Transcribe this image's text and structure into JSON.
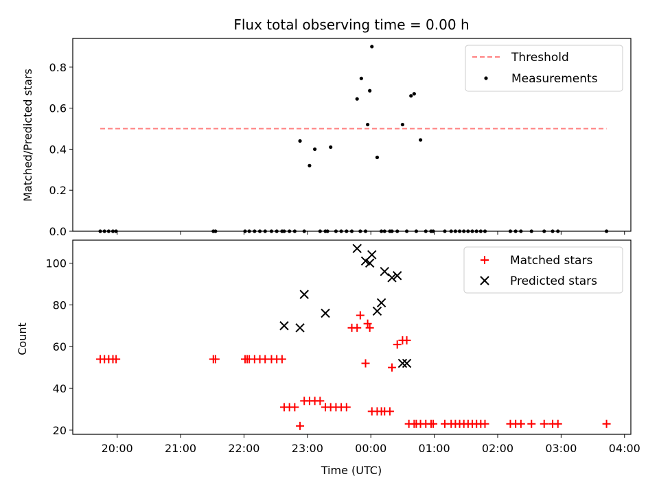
{
  "chart_data": [
    {
      "type": "scatter",
      "title": "Flux total observing time = 0.00 h",
      "xlabel": "",
      "ylabel": "Matched/Predicted stars",
      "xlim": [
        "19:18",
        "04:06"
      ],
      "ylim": [
        0,
        0.94
      ],
      "yticks": [
        0.0,
        0.2,
        0.4,
        0.6,
        0.8
      ],
      "yticklabels": [
        "0.0",
        "0.2",
        "0.4",
        "0.6",
        "0.8"
      ],
      "grid": false,
      "legend": "top-right",
      "series": [
        {
          "name": "Threshold",
          "kind": "line",
          "style": "dashed",
          "color": "#ff8080",
          "x": [
            "19:44",
            "03:43"
          ],
          "y": [
            0.5,
            0.5
          ]
        },
        {
          "name": "Measurements",
          "kind": "scatter",
          "marker": "dot",
          "color": "#000000",
          "x": [
            "19:44",
            "19:48",
            "19:52",
            "19:56",
            "19:59",
            "21:31",
            "21:33",
            "22:01",
            "22:05",
            "22:10",
            "22:15",
            "22:20",
            "22:26",
            "22:31",
            "22:36",
            "22:38",
            "22:43",
            "22:48",
            "22:53",
            "22:57",
            "23:02",
            "23:07",
            "23:12",
            "23:17",
            "23:19",
            "23:22",
            "23:27",
            "23:32",
            "23:37",
            "23:42",
            "23:47",
            "23:50",
            "23:51",
            "23:55",
            "23:57",
            "23:59",
            "00:01",
            "00:06",
            "00:10",
            "00:13",
            "00:18",
            "00:20",
            "00:25",
            "00:30",
            "00:34",
            "00:38",
            "00:41",
            "00:43",
            "00:47",
            "00:52",
            "00:57",
            "00:59",
            "01:10",
            "01:16",
            "01:20",
            "01:24",
            "01:28",
            "01:32",
            "01:36",
            "01:40",
            "01:44",
            "01:48",
            "02:12",
            "02:17",
            "02:22",
            "02:32",
            "02:44",
            "02:52",
            "02:57",
            "03:43"
          ],
          "y": [
            0,
            0,
            0,
            0,
            0,
            0,
            0,
            0,
            0,
            0,
            0,
            0,
            0,
            0,
            0,
            0,
            0,
            0,
            0.44,
            0,
            0.32,
            0.4,
            0,
            0,
            0,
            0.41,
            0,
            0,
            0,
            0,
            0.645,
            0,
            0.745,
            0,
            0.52,
            0.685,
            0.9,
            0.36,
            0,
            0,
            0,
            0,
            0,
            0.52,
            0,
            0.66,
            0.67,
            0,
            0.445,
            0,
            0,
            0,
            0,
            0,
            0,
            0,
            0,
            0,
            0,
            0,
            0,
            0,
            0,
            0,
            0,
            0,
            0,
            0,
            0,
            0
          ]
        }
      ]
    },
    {
      "type": "scatter",
      "title": "",
      "xlabel": "Time (UTC)",
      "ylabel": "Count",
      "xlim": [
        "19:18",
        "04:06"
      ],
      "xticks": [
        "20:00",
        "21:00",
        "22:00",
        "23:00",
        "00:00",
        "01:00",
        "02:00",
        "03:00",
        "04:00"
      ],
      "ylim": [
        18,
        111
      ],
      "yticks": [
        20,
        40,
        60,
        80,
        100
      ],
      "grid": false,
      "legend": "top-right",
      "series": [
        {
          "name": "Matched stars",
          "kind": "scatter",
          "marker": "plus",
          "color": "#ff0000",
          "x": [
            "19:44",
            "19:48",
            "19:52",
            "19:56",
            "19:59",
            "21:31",
            "21:33",
            "22:01",
            "22:03",
            "22:05",
            "22:10",
            "22:15",
            "22:20",
            "22:26",
            "22:31",
            "22:36",
            "22:38",
            "22:43",
            "22:48",
            "22:53",
            "22:57",
            "23:02",
            "23:07",
            "23:12",
            "23:17",
            "23:22",
            "23:27",
            "23:32",
            "23:37",
            "23:42",
            "23:47",
            "23:50",
            "23:55",
            "23:57",
            "23:59",
            "00:01",
            "00:06",
            "00:10",
            "00:13",
            "00:18",
            "00:20",
            "00:25",
            "00:30",
            "00:34",
            "00:36",
            "00:41",
            "00:43",
            "00:47",
            "00:52",
            "00:57",
            "00:59",
            "01:10",
            "01:16",
            "01:20",
            "01:24",
            "01:28",
            "01:32",
            "01:36",
            "01:40",
            "01:44",
            "01:48",
            "02:12",
            "02:17",
            "02:22",
            "02:32",
            "02:44",
            "02:52",
            "02:57",
            "03:43"
          ],
          "y": [
            54,
            54,
            54,
            54,
            54,
            54,
            54,
            54,
            54,
            54,
            54,
            54,
            54,
            54,
            54,
            54,
            31,
            31,
            31,
            22,
            34,
            34,
            34,
            34,
            31,
            31,
            31,
            31,
            31,
            69,
            69,
            75,
            52,
            71,
            69,
            29,
            29,
            29,
            29,
            29,
            50,
            61,
            63,
            63,
            23,
            23,
            23,
            23,
            23,
            23,
            23,
            23,
            23,
            23,
            23,
            23,
            23,
            23,
            23,
            23,
            23,
            23,
            23,
            23,
            23,
            23,
            23,
            23,
            23
          ]
        },
        {
          "name": "Predicted stars",
          "kind": "scatter",
          "marker": "x",
          "color": "#000000",
          "x": [
            "22:38",
            "22:53",
            "22:57",
            "23:17",
            "23:47",
            "23:55",
            "23:59",
            "00:01",
            "00:06",
            "00:10",
            "00:13",
            "00:20",
            "00:25",
            "00:30",
            "00:34"
          ],
          "y": [
            70,
            69,
            85,
            76,
            107,
            101,
            100,
            104,
            77,
            81,
            96,
            93,
            94,
            52,
            52
          ]
        }
      ]
    }
  ]
}
